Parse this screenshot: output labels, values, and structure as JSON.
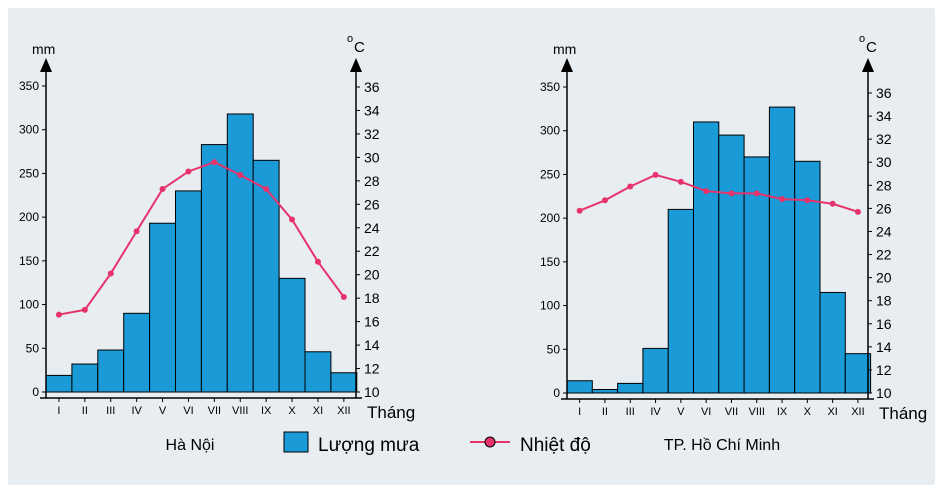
{
  "style": {
    "panel_bg": "#e8edf2",
    "bar_fill": "#1a9ad7",
    "bar_stroke": "#000000",
    "line_color": "#e6336b",
    "axis_color": "#000000"
  },
  "legend": {
    "rain_label": "Lượng mưa",
    "temp_label": "Nhiệt độ"
  },
  "chart_data": [
    {
      "type": "bar",
      "title": "Hà Nội",
      "categories": [
        "I",
        "II",
        "III",
        "IV",
        "V",
        "VI",
        "VII",
        "VIII",
        "IX",
        "X",
        "XI",
        "XII"
      ],
      "xlabel": "Tháng",
      "ylabel_left": "mm",
      "ylabel_right_base": "o",
      "ylabel_right_main": "C",
      "ylim_left": [
        0,
        350
      ],
      "yticks_left": [
        0,
        50,
        100,
        150,
        200,
        250,
        300,
        350
      ],
      "ylim_right": [
        10,
        36
      ],
      "yticks_right": [
        10,
        12,
        14,
        16,
        18,
        20,
        22,
        24,
        26,
        28,
        30,
        32,
        34,
        36
      ],
      "series": [
        {
          "name": "Lượng mưa",
          "kind": "bar",
          "axis": "left",
          "values": [
            19,
            32,
            48,
            90,
            193,
            230,
            283,
            318,
            265,
            130,
            46,
            22
          ]
        },
        {
          "name": "Nhiệt độ",
          "kind": "line",
          "axis": "right",
          "values": [
            16.6,
            17.0,
            20.1,
            23.7,
            27.3,
            28.8,
            29.6,
            28.5,
            27.3,
            24.7,
            21.1,
            18.1
          ]
        }
      ],
      "grid": false
    },
    {
      "type": "bar",
      "title": "TP. Hồ Chí Minh",
      "categories": [
        "I",
        "II",
        "III",
        "IV",
        "V",
        "VI",
        "VII",
        "VIII",
        "IX",
        "X",
        "XI",
        "XII"
      ],
      "xlabel": "Tháng",
      "ylabel_left": "mm",
      "ylabel_right_base": "o",
      "ylabel_right_main": "C",
      "ylim_left": [
        0,
        350
      ],
      "yticks_left": [
        0,
        50,
        100,
        150,
        200,
        250,
        300,
        350
      ],
      "ylim_right": [
        10,
        36
      ],
      "yticks_right": [
        10,
        12,
        14,
        16,
        18,
        20,
        22,
        24,
        26,
        28,
        30,
        32,
        34,
        36
      ],
      "series": [
        {
          "name": "Lượng mưa",
          "kind": "bar",
          "axis": "left",
          "values": [
            14,
            4,
            11,
            51,
            210,
            310,
            295,
            270,
            327,
            265,
            115,
            45
          ]
        },
        {
          "name": "Nhiệt độ",
          "kind": "line",
          "axis": "right",
          "values": [
            25.8,
            26.7,
            27.9,
            28.9,
            28.3,
            27.5,
            27.3,
            27.3,
            26.8,
            26.7,
            26.4,
            25.7
          ]
        }
      ],
      "grid": false
    }
  ]
}
